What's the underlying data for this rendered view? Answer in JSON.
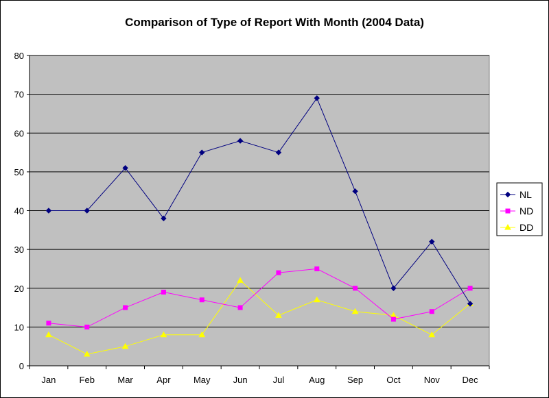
{
  "chart_data": {
    "type": "line",
    "title": "Comparison of Type of Report With Month (2004 Data)",
    "xlabel": "",
    "ylabel": "",
    "categories": [
      "Jan",
      "Feb",
      "Mar",
      "Apr",
      "May",
      "Jun",
      "Jul",
      "Aug",
      "Sep",
      "Oct",
      "Nov",
      "Dec"
    ],
    "ylim": [
      0,
      80
    ],
    "yticks": [
      0,
      10,
      20,
      30,
      40,
      50,
      60,
      70,
      80
    ],
    "grid": true,
    "plot_background": "#C0C0C0",
    "legend_position": "right",
    "series": [
      {
        "name": "NL",
        "color": "#000080",
        "marker": "diamond",
        "values": [
          40,
          40,
          51,
          38,
          55,
          58,
          55,
          69,
          45,
          20,
          32,
          16
        ]
      },
      {
        "name": "ND",
        "color": "#FF00FF",
        "marker": "square",
        "values": [
          11,
          10,
          15,
          19,
          17,
          15,
          24,
          25,
          20,
          12,
          14,
          20
        ]
      },
      {
        "name": "DD",
        "color": "#FFFF00",
        "marker": "triangle",
        "values": [
          8,
          3,
          5,
          8,
          8,
          22,
          13,
          17,
          14,
          13,
          8,
          16
        ]
      }
    ]
  }
}
